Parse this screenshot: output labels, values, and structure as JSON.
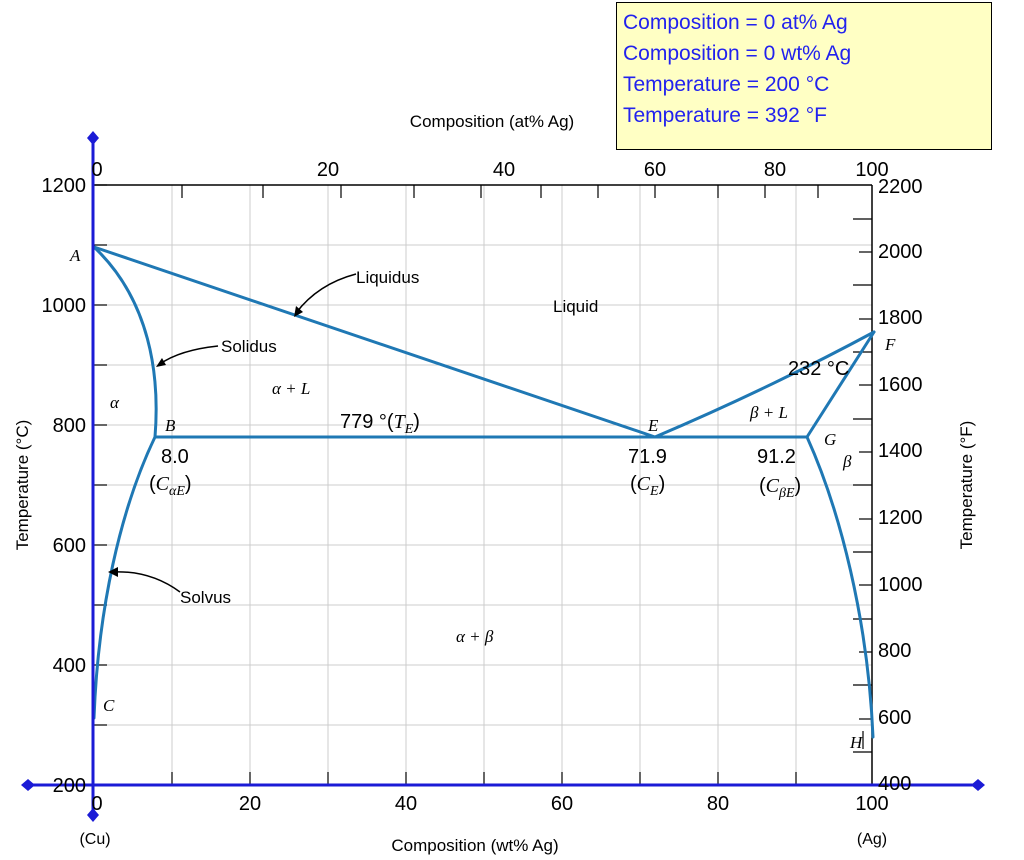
{
  "readout": {
    "comp_at": "Composition = 0 at% Ag",
    "comp_wt": "Composition = 0 wt% Ag",
    "temp_c": "Temperature = 200 °C",
    "temp_f": "Temperature = 392 °F"
  },
  "axes": {
    "top_label": "Composition (at% Ag)",
    "bottom_label": "Composition (wt% Ag)",
    "left_label": "Temperature (°C)",
    "right_label": "Temperature (°F)",
    "left_end": "(Cu)",
    "right_end": "(Ag)",
    "wt_ticks": [
      "0",
      "20",
      "40",
      "60",
      "80",
      "100"
    ],
    "at_ticks": [
      "0",
      "20",
      "40",
      "60",
      "80",
      "100"
    ],
    "c_ticks": [
      "200",
      "400",
      "600",
      "800",
      "1000",
      "1200"
    ],
    "f_ticks": [
      "400",
      "600",
      "800",
      "1000",
      "1200",
      "1400",
      "1600",
      "1800",
      "2000",
      "2200"
    ]
  },
  "points": {
    "A": "A",
    "B": "B",
    "C": "C",
    "E": "E",
    "F": "F",
    "G": "G",
    "H": "H"
  },
  "regions": {
    "alpha": "α",
    "alpha_l": "α + L",
    "liquid": "Liquid",
    "beta_l": "β + L",
    "beta": "β",
    "alpha_beta": "α + β"
  },
  "curves": {
    "liquidus": "Liquidus",
    "solidus": "Solidus",
    "solvus": "Solvus"
  },
  "eutectic": {
    "temp_value": "779 °(",
    "temp_sym": "T",
    "temp_sub": "E",
    "temp_close": ")",
    "b_value": "8.0",
    "b_sym": "C",
    "b_sub": "αE",
    "e_value": "71.9",
    "e_sym": "C",
    "e_sub": "E",
    "g_value": "91.2",
    "g_sym": "C",
    "g_sub": "βE",
    "ag_melt": "232 °C"
  },
  "colors": {
    "curve": "#1f78b4",
    "axis": "#1b1bd6",
    "readout_text": "#2222ee",
    "readout_bg": "#ffffc4",
    "grid": "#cccccc"
  },
  "cursor": {
    "composition_wt": 0,
    "temperature_c": 200
  }
}
